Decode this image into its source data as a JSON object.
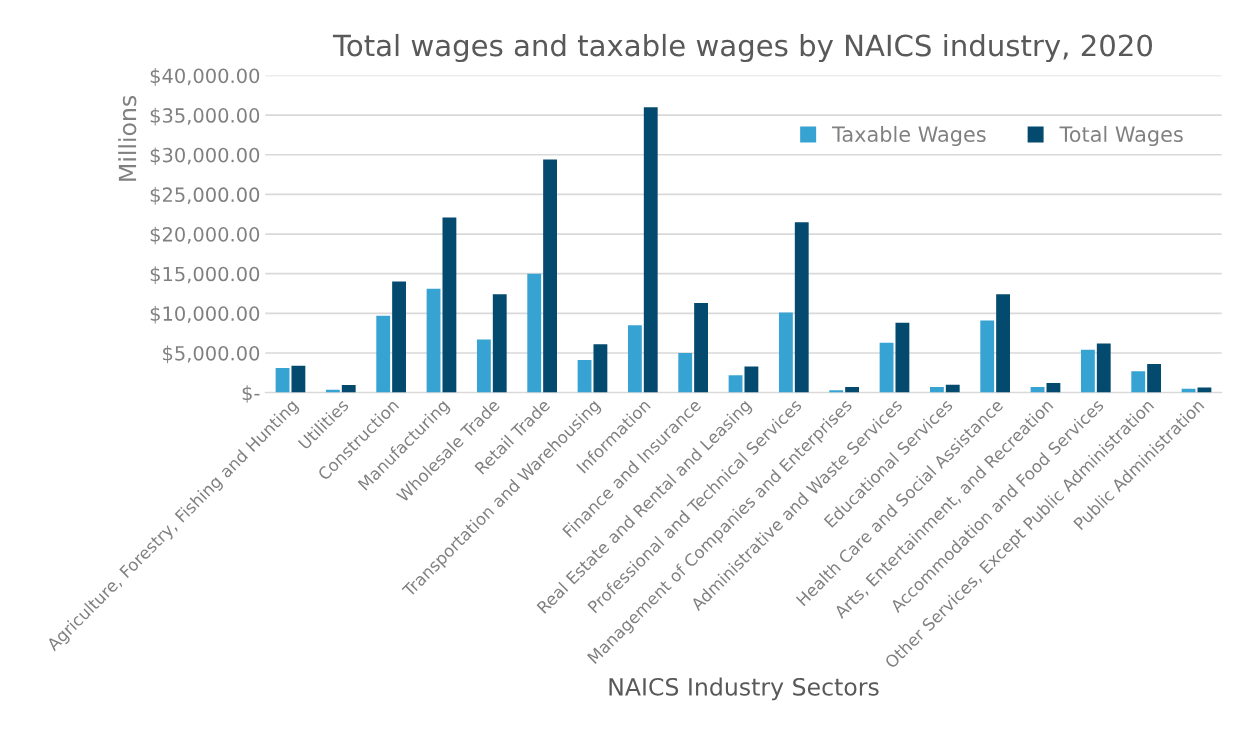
{
  "chart_data": {
    "type": "bar",
    "title": "Total wages and taxable wages by NAICS industry, 2020",
    "xlabel": "NAICS Industry Sectors",
    "ylabel": "Millions",
    "categories": [
      "Agriculture, Forestry, Fishing and Hunting",
      "Utilities",
      "Construction",
      "Manufacturing",
      "Wholesale Trade",
      "Retail Trade",
      "Transportation and Warehousing",
      "Information",
      "Finance and Insurance",
      "Real Estate and Rental and Leasing",
      "Professional and Technical Services",
      "Management of Companies and Enterprises",
      "Administrative and Waste Services",
      "Educational Services",
      "Health Care and Social Assistance",
      "Arts, Entertainment, and Recreation",
      "Accommodation and Food Services",
      "Other Services, Except Public Administration",
      "Public Administration"
    ],
    "series": [
      {
        "name": "Taxable Wages",
        "color": "#36a3d3",
        "values": [
          3100,
          350,
          9700,
          13100,
          6700,
          15000,
          4100,
          8500,
          5000,
          2200,
          10100,
          300,
          6300,
          700,
          9100,
          700,
          5400,
          2700,
          500
        ]
      },
      {
        "name": "Total Wages",
        "color": "#034a6e",
        "values": [
          3400,
          950,
          14000,
          22100,
          12400,
          29400,
          6100,
          36000,
          11300,
          3300,
          21500,
          700,
          8800,
          1000,
          12400,
          1200,
          6200,
          3600,
          650
        ]
      }
    ],
    "ylim": [
      0,
      40000
    ],
    "yticks": [
      {
        "value": 0,
        "label": "$-"
      },
      {
        "value": 5000,
        "label": "$5,000.00"
      },
      {
        "value": 10000,
        "label": "$10,000.00"
      },
      {
        "value": 15000,
        "label": "$15,000.00"
      },
      {
        "value": 20000,
        "label": "$20,000.00"
      },
      {
        "value": 25000,
        "label": "$25,000.00"
      },
      {
        "value": 30000,
        "label": "$30,000.00"
      },
      {
        "value": 35000,
        "label": "$35,000.00"
      },
      {
        "value": 40000,
        "label": "$40,000.00"
      }
    ],
    "grid": "y",
    "legend": "top right"
  }
}
